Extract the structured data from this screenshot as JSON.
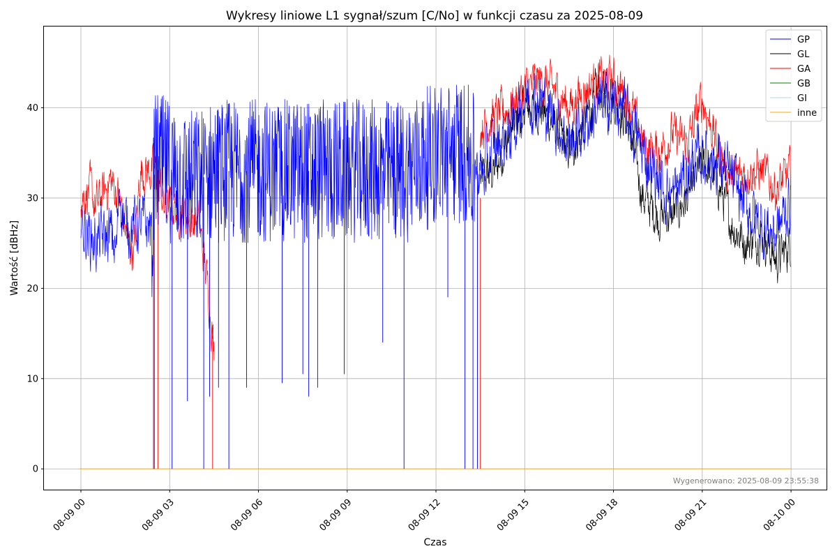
{
  "chart_data": {
    "type": "line",
    "title": "Wykresy liniowe L1 sygnał/szum [C/No] w funkcji czasu za 2025-08-09",
    "xlabel": "Czas",
    "ylabel": "Wartość [dBHz]",
    "generated_note": "Wygenerowano: 2025-08-09 23:55:38",
    "grid": true,
    "legend_position": "top-right",
    "xlim_hours": [
      -1.25,
      25.2
    ],
    "ylim": [
      -2.3,
      49
    ],
    "x_ticks": [
      {
        "hour": 0,
        "label": "08-09 00"
      },
      {
        "hour": 3,
        "label": "08-09 03"
      },
      {
        "hour": 6,
        "label": "08-09 06"
      },
      {
        "hour": 9,
        "label": "08-09 09"
      },
      {
        "hour": 12,
        "label": "08-09 12"
      },
      {
        "hour": 15,
        "label": "08-09 15"
      },
      {
        "hour": 18,
        "label": "08-09 18"
      },
      {
        "hour": 21,
        "label": "08-09 21"
      },
      {
        "hour": 24,
        "label": "08-10 00"
      }
    ],
    "y_ticks": [
      0,
      10,
      20,
      30,
      40
    ],
    "series": [
      {
        "name": "GP",
        "color": "#0000ff",
        "x": [
          0,
          0.5,
          1,
          1.2,
          1.3,
          1.5,
          2,
          2.4,
          2.5,
          3,
          3.5,
          4,
          4.5,
          5,
          6,
          7,
          8,
          9,
          10,
          11,
          12,
          13,
          13.4,
          13.6,
          14,
          14.5,
          15,
          15.5,
          16,
          16.5,
          17,
          17.5,
          18,
          18.5,
          19,
          19.5,
          20,
          20.5,
          21,
          21.5,
          22,
          22.5,
          23,
          23.5,
          24
        ],
        "y": [
          27,
          25,
          26,
          24,
          31,
          27,
          27,
          27,
          34,
          33,
          32,
          32,
          33,
          33,
          33,
          33,
          33,
          33,
          33,
          33,
          35,
          35,
          33,
          33,
          36,
          37,
          41,
          41,
          39,
          36,
          38,
          40,
          41,
          39,
          35,
          32,
          30,
          33,
          35,
          34,
          32,
          29,
          27,
          26,
          30
        ],
        "noise": 4,
        "dips": [
          [
            2.48,
            0
          ],
          [
            3.08,
            0
          ],
          [
            4.15,
            0
          ],
          [
            5.0,
            0
          ],
          [
            10.92,
            0
          ],
          [
            12.98,
            0
          ],
          [
            13.25,
            0
          ],
          [
            13.4,
            0
          ],
          [
            3.6,
            7.5
          ],
          [
            4.35,
            8
          ],
          [
            4.65,
            9
          ],
          [
            5.6,
            9
          ],
          [
            6.8,
            9.5
          ],
          [
            7.5,
            10.5
          ],
          [
            7.7,
            8
          ],
          [
            8.0,
            9
          ],
          [
            8.9,
            10.5
          ],
          [
            10.2,
            14
          ],
          [
            12.4,
            19
          ]
        ]
      },
      {
        "name": "GL",
        "color": "#000000",
        "x": [
          13.5,
          14,
          14.5,
          15,
          15.5,
          16,
          16.5,
          17,
          17.5,
          18,
          18.5,
          19,
          19.5,
          20,
          20.5,
          21,
          21.5,
          22,
          22.5,
          23,
          23.5,
          24
        ],
        "y": [
          32,
          33,
          37,
          40,
          40,
          38,
          35,
          38,
          42,
          41,
          38,
          30,
          28,
          28,
          30,
          34,
          32,
          27,
          25,
          26,
          23,
          25
        ],
        "noise": 3
      },
      {
        "name": "GA",
        "color": "#ff0000",
        "x": [
          0,
          0.3,
          0.5,
          1,
          1.3,
          1.6,
          1.8,
          2,
          2.3,
          2.6,
          2.8,
          3.2,
          3.6,
          4,
          4.3,
          4.5,
          5,
          13.5,
          14,
          14.5,
          15,
          15.5,
          16,
          16.5,
          17,
          17.5,
          18,
          18.5,
          19,
          19.5,
          20,
          20.5,
          21,
          21.5,
          22,
          22.5,
          23,
          23.5,
          24
        ],
        "y": [
          30,
          31,
          29,
          32,
          30,
          25,
          24,
          33,
          33,
          33,
          29,
          29,
          28,
          27,
          20,
          13,
          null,
          38,
          39,
          40,
          42,
          43,
          42,
          40,
          42,
          43,
          43,
          41,
          36,
          35,
          37,
          36,
          41,
          36,
          32,
          33,
          33,
          31,
          33
        ],
        "noise": 3,
        "dips": [
          [
            2.45,
            0
          ],
          [
            2.6,
            0
          ],
          [
            4.45,
            0
          ],
          [
            13.5,
            0
          ]
        ]
      },
      {
        "name": "GB",
        "color": "#008000",
        "x": [
          -0.05,
          24
        ],
        "y": [
          0,
          0
        ],
        "noise": 0
      },
      {
        "name": "GI",
        "color": "#add8e6",
        "x": [
          -0.05,
          24
        ],
        "y": [
          0,
          0
        ],
        "noise": 0
      },
      {
        "name": "inne",
        "color": "#ffa500",
        "x": [
          -0.05,
          24
        ],
        "y": [
          0,
          0
        ],
        "noise": 0
      }
    ]
  }
}
